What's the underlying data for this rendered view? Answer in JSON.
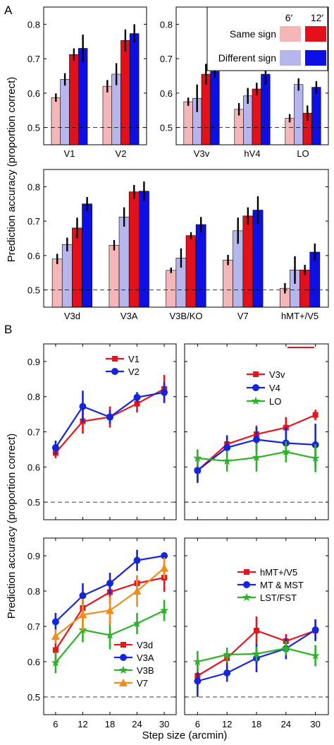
{
  "figure": {
    "panel_labels": [
      "A",
      "B"
    ],
    "ylabel": "Prediction accuracy (proportion correct)",
    "xlabel": "Step size (arcmin)"
  },
  "colors": {
    "same_6": "#f4b6b6",
    "same_12": "#e3101a",
    "diff_6": "#b6b6ee",
    "diff_12": "#0c10e6",
    "red": "#e4151c",
    "blue": "#1426dc",
    "green": "#2fb22a",
    "orange": "#f08c18"
  },
  "legend_a": {
    "header_6": "6′",
    "header_12": "12′",
    "row_same": "Same sign",
    "row_diff": "Different sign"
  },
  "chart_data": [
    {
      "type": "bar",
      "panel": "A-top-left",
      "categories": [
        "V1",
        "V2"
      ],
      "ylim": [
        0.45,
        0.85
      ],
      "yticks": [
        0.5,
        0.6,
        0.7,
        0.8
      ],
      "chance": 0.5,
      "series": [
        {
          "name": "Same sign 6′",
          "values": [
            0.587,
            0.62
          ],
          "errors": [
            0.012,
            0.018
          ]
        },
        {
          "name": "Different sign 6′",
          "values": [
            0.64,
            0.655
          ],
          "errors": [
            0.018,
            0.032
          ]
        },
        {
          "name": "Same sign 12′",
          "values": [
            0.712,
            0.753
          ],
          "errors": [
            0.018,
            0.032
          ]
        },
        {
          "name": "Different sign 12′",
          "values": [
            0.73,
            0.773
          ],
          "errors": [
            0.04,
            0.027
          ]
        }
      ]
    },
    {
      "type": "bar",
      "panel": "A-top-right",
      "categories": [
        "V3v",
        "hV4",
        "LO"
      ],
      "ylim": [
        0.45,
        0.85
      ],
      "yticks": [
        0.5,
        0.6,
        0.7,
        0.8
      ],
      "chance": 0.5,
      "series": [
        {
          "name": "Same sign 6′",
          "values": [
            0.575,
            0.553,
            0.527
          ],
          "errors": [
            0.012,
            0.018,
            0.012
          ]
        },
        {
          "name": "Different sign 6′",
          "values": [
            0.585,
            0.592,
            0.625
          ],
          "errors": [
            0.04,
            0.023,
            0.018
          ]
        },
        {
          "name": "Same sign 12′",
          "values": [
            0.655,
            0.612,
            0.542
          ],
          "errors": [
            0.03,
            0.018,
            0.022
          ]
        },
        {
          "name": "Different sign 12′",
          "values": [
            0.663,
            0.655,
            0.617
          ],
          "errors": [
            0.018,
            0.03,
            0.018
          ]
        }
      ]
    },
    {
      "type": "bar",
      "panel": "A-bottom",
      "categories": [
        "V3d",
        "V3A",
        "V3B/KO",
        "V7",
        "hMT+/V5"
      ],
      "ylim": [
        0.45,
        0.85
      ],
      "yticks": [
        0.5,
        0.6,
        0.7,
        0.8
      ],
      "chance": 0.5,
      "series": [
        {
          "name": "Same sign 6′",
          "values": [
            0.59,
            0.63,
            0.557,
            0.587,
            0.505
          ],
          "errors": [
            0.015,
            0.015,
            0.008,
            0.015,
            0.015
          ]
        },
        {
          "name": "Different sign 6′",
          "values": [
            0.632,
            0.712,
            0.593,
            0.672,
            0.558
          ],
          "errors": [
            0.02,
            0.028,
            0.028,
            0.038,
            0.04
          ]
        },
        {
          "name": "Same sign 12′",
          "values": [
            0.68,
            0.785,
            0.658,
            0.715,
            0.558
          ],
          "errors": [
            0.03,
            0.02,
            0.01,
            0.025,
            0.015
          ]
        },
        {
          "name": "Different sign 12′",
          "values": [
            0.75,
            0.787,
            0.69,
            0.732,
            0.61
          ],
          "errors": [
            0.02,
            0.028,
            0.022,
            0.04,
            0.025
          ]
        }
      ]
    },
    {
      "type": "line",
      "panel": "B-top-left",
      "x": [
        6,
        12,
        18,
        24,
        30
      ],
      "ylim": [
        0.45,
        0.95
      ],
      "yticks": [
        0.5,
        0.6,
        0.7,
        0.8,
        0.9
      ],
      "chance": 0.5,
      "series": [
        {
          "name": "V1",
          "color": "red",
          "marker": "square",
          "values": [
            0.64,
            0.73,
            0.742,
            0.78,
            0.822
          ],
          "errors": [
            0.015,
            0.035,
            0.03,
            0.025,
            0.04
          ]
        },
        {
          "name": "V2",
          "color": "blue",
          "marker": "circle",
          "values": [
            0.655,
            0.772,
            0.742,
            0.798,
            0.812
          ],
          "errors": [
            0.02,
            0.045,
            0.02,
            0.015,
            0.03
          ]
        }
      ]
    },
    {
      "type": "line",
      "panel": "B-top-right",
      "x": [
        6,
        12,
        18,
        24,
        30
      ],
      "ylim": [
        0.45,
        0.95
      ],
      "yticks": [
        0.5,
        0.6,
        0.7,
        0.8,
        0.9
      ],
      "chance": 0.5,
      "series": [
        {
          "name": "V3v",
          "color": "red",
          "marker": "square",
          "values": [
            0.59,
            0.665,
            0.693,
            0.712,
            0.748
          ],
          "errors": [
            0.035,
            0.025,
            0.025,
            0.03,
            0.015
          ]
        },
        {
          "name": "V4",
          "color": "blue",
          "marker": "circle",
          "values": [
            0.59,
            0.655,
            0.678,
            0.668,
            0.663
          ],
          "errors": [
            0.035,
            0.035,
            0.035,
            0.045,
            0.06
          ]
        },
        {
          "name": "LO",
          "color": "green",
          "marker": "star",
          "values": [
            0.625,
            0.617,
            0.627,
            0.643,
            0.625
          ],
          "errors": [
            0.025,
            0.03,
            0.04,
            0.03,
            0.04
          ]
        }
      ]
    },
    {
      "type": "line",
      "panel": "B-bottom-left",
      "x": [
        6,
        12,
        18,
        24,
        30
      ],
      "ylim": [
        0.45,
        0.95
      ],
      "yticks": [
        0.5,
        0.6,
        0.7,
        0.8,
        0.9
      ],
      "chance": 0.5,
      "series": [
        {
          "name": "V3d",
          "color": "red",
          "marker": "square",
          "values": [
            0.633,
            0.752,
            0.797,
            0.822,
            0.838
          ],
          "errors": [
            0.03,
            0.03,
            0.03,
            0.02,
            0.04
          ]
        },
        {
          "name": "V3A",
          "color": "blue",
          "marker": "circle",
          "values": [
            0.713,
            0.787,
            0.822,
            0.887,
            0.9
          ],
          "errors": [
            0.025,
            0.035,
            0.03,
            0.03,
            0.01
          ]
        },
        {
          "name": "V3B",
          "color": "green",
          "marker": "star",
          "values": [
            0.597,
            0.69,
            0.675,
            0.708,
            0.745
          ],
          "errors": [
            0.03,
            0.035,
            0.04,
            0.03,
            0.03
          ]
        },
        {
          "name": "V7",
          "color": "orange",
          "marker": "triangle",
          "values": [
            0.672,
            0.733,
            0.745,
            0.8,
            0.865
          ],
          "errors": [
            0.02,
            0.045,
            0.04,
            0.045,
            0.03
          ]
        }
      ]
    },
    {
      "type": "line",
      "panel": "B-bottom-right",
      "x": [
        6,
        12,
        18,
        24,
        30
      ],
      "ylim": [
        0.45,
        0.95
      ],
      "yticks": [
        0.5,
        0.6,
        0.7,
        0.8,
        0.9
      ],
      "chance": 0.5,
      "series": [
        {
          "name": "hMT+/V5",
          "color": "red",
          "marker": "square",
          "values": [
            0.56,
            0.61,
            0.688,
            0.658,
            0.688
          ],
          "errors": [
            0.04,
            0.02,
            0.04,
            0.02,
            0.03
          ]
        },
        {
          "name": "MT & MST",
          "color": "blue",
          "marker": "circle",
          "values": [
            0.545,
            0.568,
            0.61,
            0.637,
            0.69
          ],
          "errors": [
            0.045,
            0.025,
            0.04,
            0.03,
            0.03
          ]
        },
        {
          "name": "LST/FST",
          "color": "green",
          "marker": "star",
          "values": [
            0.6,
            0.62,
            0.622,
            0.638,
            0.617
          ],
          "errors": [
            0.03,
            0.02,
            0.02,
            0.02,
            0.03
          ]
        }
      ]
    }
  ]
}
